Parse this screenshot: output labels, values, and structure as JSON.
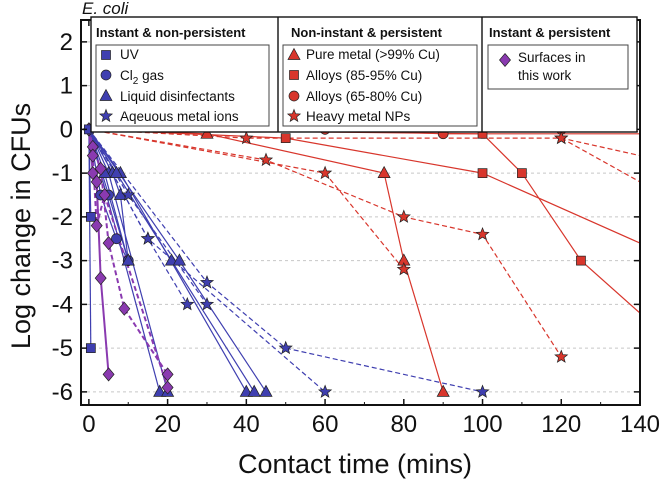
{
  "chart_data": {
    "type": "line",
    "title": "E. coli",
    "xlabel": "Contact time (mins)",
    "ylabel": "Log change in CFUs",
    "xlim": [
      -2,
      140
    ],
    "ylim": [
      -6.3,
      2.5
    ],
    "xticks": [
      0,
      20,
      40,
      60,
      80,
      100,
      120,
      140
    ],
    "yticks": [
      2,
      1,
      0,
      -1,
      -2,
      -3,
      -4,
      -5,
      -6
    ],
    "xtick_labels": [
      "0",
      "20",
      "40",
      "60",
      "80",
      "100",
      "120",
      "140"
    ],
    "ytick_labels": [
      "2",
      "1",
      "0",
      "-1",
      "-2",
      "-3",
      "-4",
      "-5",
      "-6"
    ],
    "grid": "horizontal dashed",
    "colors": {
      "blue": "#3f3fb0",
      "red": "#d8362c",
      "purple": "#8a3ab0"
    },
    "legend_groups": [
      {
        "heading": "Instant & non-persistent",
        "entries": [
          {
            "label": "UV",
            "marker": "square",
            "color": "blue"
          },
          {
            "label_main": "Cl",
            "label_sub": "2",
            "label_tail": " gas",
            "marker": "circle",
            "color": "blue"
          },
          {
            "label": "Liquid disinfectants",
            "marker": "triangle",
            "color": "blue"
          },
          {
            "label": "Aqeuous metal ions",
            "marker": "star",
            "color": "blue"
          }
        ]
      },
      {
        "heading": "Non-instant & persistent",
        "entries": [
          {
            "label": "Pure metal (>99% Cu)",
            "marker": "triangle",
            "color": "red"
          },
          {
            "label": "Alloys (85-95% Cu)",
            "marker": "square",
            "color": "red"
          },
          {
            "label": "Alloys (65-80% Cu)",
            "marker": "circle",
            "color": "red"
          },
          {
            "label": "Heavy metal NPs",
            "marker": "star",
            "color": "red"
          }
        ]
      },
      {
        "heading": "Instant & persistent",
        "entries": [
          {
            "label": "Surfaces in this work",
            "marker": "diamond",
            "color": "purple"
          }
        ]
      }
    ],
    "series": [
      {
        "name": "UV",
        "group": "Instant & non-persistent",
        "color": "blue",
        "marker": "square",
        "style": "solid",
        "points": [
          [
            0,
            0
          ],
          [
            0.5,
            -2
          ]
        ]
      },
      {
        "name": "UV",
        "group": "Instant & non-persistent",
        "color": "blue",
        "marker": "square",
        "style": "solid",
        "points": [
          [
            0,
            0
          ],
          [
            0.5,
            -5
          ]
        ]
      },
      {
        "name": "Cl2 gas",
        "group": "Instant & non-persistent",
        "color": "blue",
        "marker": "circle",
        "style": "solid",
        "points": [
          [
            0,
            0
          ],
          [
            5,
            -1.5
          ],
          [
            10,
            -3
          ]
        ]
      },
      {
        "name": "Cl2 gas",
        "group": "Instant & non-persistent",
        "color": "blue",
        "marker": "circle",
        "style": "solid",
        "points": [
          [
            0,
            0
          ],
          [
            3,
            -1.5
          ],
          [
            7,
            -2.5
          ],
          [
            10,
            -3
          ]
        ]
      },
      {
        "name": "Liquid disinfectants",
        "group": "Instant & non-persistent",
        "color": "blue",
        "marker": "triangle",
        "style": "solid",
        "points": [
          [
            0,
            0
          ],
          [
            18,
            -6
          ]
        ]
      },
      {
        "name": "Liquid disinfectants",
        "group": "Instant & non-persistent",
        "color": "blue",
        "marker": "triangle",
        "style": "solid",
        "points": [
          [
            0,
            0
          ],
          [
            5,
            -1
          ],
          [
            20,
            -6
          ]
        ]
      },
      {
        "name": "Liquid disinfectants",
        "group": "Instant & non-persistent",
        "color": "blue",
        "marker": "triangle",
        "style": "solid",
        "points": [
          [
            0,
            0
          ],
          [
            6,
            -1
          ],
          [
            8,
            -1.5
          ],
          [
            10,
            -3
          ]
        ]
      },
      {
        "name": "Liquid disinfectants",
        "group": "Instant & non-persistent",
        "color": "blue",
        "marker": "triangle",
        "style": "solid",
        "points": [
          [
            0,
            0
          ],
          [
            4,
            -1
          ],
          [
            10,
            -3
          ]
        ]
      },
      {
        "name": "Liquid disinfectants",
        "group": "Instant & non-persistent",
        "color": "blue",
        "marker": "triangle",
        "style": "solid",
        "points": [
          [
            0,
            0
          ],
          [
            8,
            -1
          ],
          [
            40,
            -6
          ]
        ]
      },
      {
        "name": "Liquid disinfectants",
        "group": "Instant & non-persistent",
        "color": "blue",
        "marker": "triangle",
        "style": "solid",
        "points": [
          [
            0,
            0
          ],
          [
            7,
            -1
          ],
          [
            21,
            -3
          ],
          [
            42,
            -6
          ]
        ]
      },
      {
        "name": "Liquid disinfectants",
        "group": "Instant & non-persistent",
        "color": "blue",
        "marker": "triangle",
        "style": "solid",
        "points": [
          [
            0,
            0
          ],
          [
            23,
            -3
          ],
          [
            45,
            -6
          ]
        ]
      },
      {
        "name": "Aqeuous metal ions",
        "group": "Instant & non-persistent",
        "color": "blue",
        "marker": "star",
        "style": "dashed",
        "points": [
          [
            0,
            0
          ],
          [
            15,
            -2.5
          ],
          [
            25,
            -4
          ]
        ]
      },
      {
        "name": "Aqeuous metal ions",
        "group": "Instant & non-persistent",
        "color": "blue",
        "marker": "star",
        "style": "dashed",
        "points": [
          [
            0,
            0
          ],
          [
            10,
            -1.5
          ],
          [
            30,
            -4
          ]
        ]
      },
      {
        "name": "Aqeuous metal ions",
        "group": "Instant & non-persistent",
        "color": "blue",
        "marker": "star",
        "style": "dashed",
        "points": [
          [
            0,
            0
          ],
          [
            30,
            -3.5
          ],
          [
            50,
            -5
          ],
          [
            100,
            -6
          ]
        ]
      },
      {
        "name": "Aqeuous metal ions",
        "group": "Instant & non-persistent",
        "color": "blue",
        "marker": "star",
        "style": "dashed",
        "points": [
          [
            0,
            0
          ],
          [
            15,
            -2.5
          ],
          [
            60,
            -6
          ]
        ]
      },
      {
        "name": "Pure metal (>99% Cu)",
        "group": "Non-instant & persistent",
        "color": "red",
        "marker": "triangle",
        "style": "solid",
        "points": [
          [
            0,
            0
          ],
          [
            30,
            -0.1
          ],
          [
            75,
            -1
          ],
          [
            80,
            -3
          ],
          [
            90,
            -6
          ]
        ]
      },
      {
        "name": "Alloys (85-95% Cu)",
        "group": "Non-instant & persistent",
        "color": "red",
        "marker": "square",
        "style": "solid",
        "points": [
          [
            0,
            0
          ],
          [
            50,
            -0.2
          ],
          [
            100,
            -1
          ],
          [
            140,
            -2.6
          ]
        ]
      },
      {
        "name": "Alloys (85-95% Cu)",
        "group": "Non-instant & persistent",
        "color": "red",
        "marker": "square",
        "style": "solid",
        "points": [
          [
            0,
            0
          ],
          [
            100,
            -0.1
          ],
          [
            110,
            -1
          ],
          [
            125,
            -3
          ],
          [
            140,
            -4.2
          ]
        ]
      },
      {
        "name": "Alloys (65-80% Cu)",
        "group": "Non-instant & persistent",
        "color": "red",
        "marker": "circle",
        "style": "solid",
        "points": [
          [
            0,
            0
          ],
          [
            60,
            0
          ],
          [
            90,
            -0.1
          ],
          [
            140,
            -0.1
          ]
        ]
      },
      {
        "name": "Alloys (65-80% Cu)",
        "group": "Non-instant & persistent",
        "color": "red",
        "marker": "circle",
        "style": "dashed",
        "points": [
          [
            0,
            0
          ],
          [
            120,
            0
          ],
          [
            140,
            -0.05
          ]
        ]
      },
      {
        "name": "Heavy metal NPs",
        "group": "Non-instant & persistent",
        "color": "red",
        "marker": "star",
        "style": "dashed",
        "points": [
          [
            0,
            0
          ],
          [
            40,
            -0.2
          ],
          [
            120,
            -0.2
          ],
          [
            140,
            -0.6
          ]
        ]
      },
      {
        "name": "Heavy metal NPs",
        "group": "Non-instant & persistent",
        "color": "red",
        "marker": "star",
        "style": "dashed",
        "points": [
          [
            0,
            0
          ],
          [
            45,
            -0.7
          ],
          [
            80,
            -2
          ],
          [
            100,
            -2.4
          ],
          [
            120,
            -5.2
          ]
        ]
      },
      {
        "name": "Heavy metal NPs",
        "group": "Non-instant & persistent",
        "color": "red",
        "marker": "star",
        "style": "dashed",
        "points": [
          [
            0,
            0
          ],
          [
            60,
            -1
          ],
          [
            80,
            -3.2
          ]
        ]
      },
      {
        "name": "Heavy metal NPs",
        "group": "Non-instant & persistent",
        "color": "red",
        "marker": "star",
        "style": "dashed",
        "points": [
          [
            120,
            -0.2
          ],
          [
            140,
            -1.2
          ]
        ]
      },
      {
        "name": "Surfaces in this work",
        "group": "Instant & persistent",
        "color": "purple",
        "marker": "diamond",
        "style": "solid",
        "points": [
          [
            0,
            0
          ],
          [
            1,
            -1
          ],
          [
            2,
            -1.2
          ],
          [
            3,
            -3.4
          ],
          [
            5,
            -5.6
          ]
        ]
      },
      {
        "name": "Surfaces in this work",
        "group": "Instant & persistent",
        "color": "purple",
        "marker": "diamond",
        "style": "dashed",
        "points": [
          [
            0,
            0
          ],
          [
            1,
            -0.4
          ],
          [
            3,
            -0.9
          ],
          [
            5,
            -2.6
          ],
          [
            9,
            -4.1
          ],
          [
            20,
            -5.6
          ]
        ]
      },
      {
        "name": "Surfaces in this work",
        "group": "Instant & persistent",
        "color": "purple",
        "marker": "diamond",
        "style": "dashed",
        "points": [
          [
            0,
            0
          ],
          [
            1,
            -0.6
          ],
          [
            2,
            -2.2
          ],
          [
            4,
            -1.5
          ],
          [
            20,
            -5.9
          ]
        ]
      }
    ]
  }
}
